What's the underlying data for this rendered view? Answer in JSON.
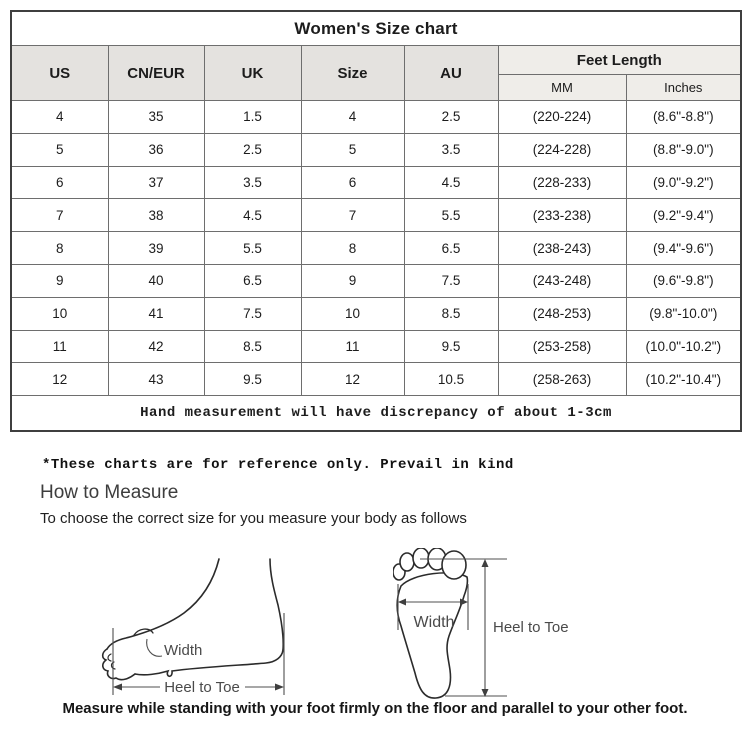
{
  "table": {
    "title": "Women's Size chart",
    "columns": [
      "US",
      "CN/EUR",
      "UK",
      "Size",
      "AU"
    ],
    "feet_length_header": "Feet Length",
    "feet_length_sub": [
      "MM",
      "Inches"
    ],
    "rows": [
      [
        "4",
        "35",
        "1.5",
        "4",
        "2.5",
        "(220-224)",
        "(8.6\"-8.8\")"
      ],
      [
        "5",
        "36",
        "2.5",
        "5",
        "3.5",
        "(224-228)",
        "(8.8\"-9.0\")"
      ],
      [
        "6",
        "37",
        "3.5",
        "6",
        "4.5",
        "(228-233)",
        "(9.0\"-9.2\")"
      ],
      [
        "7",
        "38",
        "4.5",
        "7",
        "5.5",
        "(233-238)",
        "(9.2\"-9.4\")"
      ],
      [
        "8",
        "39",
        "5.5",
        "8",
        "6.5",
        "(238-243)",
        "(9.4\"-9.6\")"
      ],
      [
        "9",
        "40",
        "6.5",
        "9",
        "7.5",
        "(243-248)",
        "(9.6\"-9.8\")"
      ],
      [
        "10",
        "41",
        "7.5",
        "10",
        "8.5",
        "(248-253)",
        "(9.8\"-10.0\")"
      ],
      [
        "11",
        "42",
        "8.5",
        "11",
        "9.5",
        "(253-258)",
        "(10.0\"-10.2\")"
      ],
      [
        "12",
        "43",
        "9.5",
        "12",
        "10.5",
        "(258-263)",
        "(10.2\"-10.4\")"
      ]
    ],
    "footnote": "Hand measurement will have discrepancy of about 1-3cm"
  },
  "notes": {
    "reference": "*These charts are for reference only. Prevail in kind",
    "how_to_measure_title": "How to Measure",
    "how_to_measure_sub": "To choose the correct size for you measure your body as follows",
    "bottom_caption": "Measure while standing with your foot firmly on the floor and parallel to your other foot."
  },
  "diagrams": {
    "side_view": {
      "width_label": "Width",
      "length_label": "Heel to Toe"
    },
    "top_view": {
      "width_label": "Width",
      "length_label": "Heel to Toe"
    }
  },
  "colors": {
    "header_bg": "#e4e2df",
    "subheader_bg": "#efede9",
    "border": "#6e6e6e",
    "outer_border": "#3f3f3f",
    "text": "#1c1c1c",
    "diagram_label": "#4a4a4a"
  }
}
